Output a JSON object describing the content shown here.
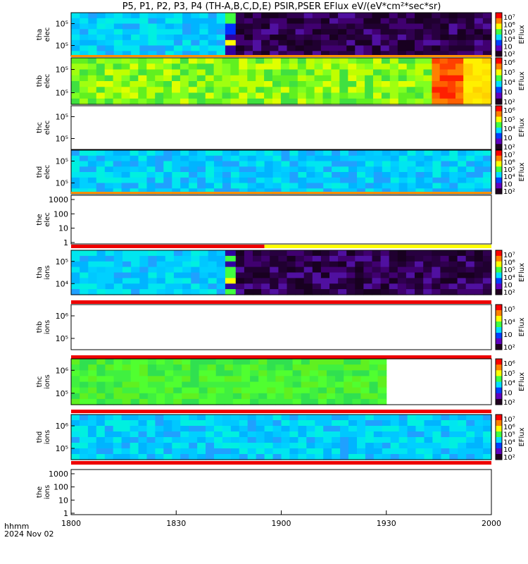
{
  "chart_data": {
    "type": "heatmap",
    "title": "P5, P1, P2, P3, P4 (TH-A,B,C,D,E) PSIR,PSER EFlux eV/(eV*cm²*sec*sr)",
    "x_ticks": [
      "1800",
      "1830",
      "1900",
      "1930",
      "2000"
    ],
    "time_label": "hhmm",
    "date_label": "2024 Nov 02",
    "colorbar_label": "EFlux",
    "panels": [
      {
        "name": "tha elec",
        "ylabel": [
          "tha",
          "elec"
        ],
        "yticks": [
          "10⁵",
          "10⁵"
        ],
        "coverage_end": 1.0,
        "strip": "orange",
        "colorbar": {
          "ticks": [
            "10⁷",
            "10⁶",
            "10⁵",
            "10⁴",
            "10⁳",
            "10²"
          ]
        },
        "segments": [
          {
            "from": "1800",
            "to": "1844",
            "state": "blue-cyan"
          },
          {
            "from": "1844",
            "to": "1847",
            "state": "transition"
          },
          {
            "from": "1847",
            "to": "2000",
            "state": "dark-purple"
          }
        ]
      },
      {
        "name": "thb elec",
        "ylabel": [
          "thb",
          "elec"
        ],
        "yticks": [
          "10⁵",
          "10⁵"
        ],
        "coverage_end": 1.0,
        "strip": "none",
        "colorbar": {
          "ticks": [
            "10⁶",
            "10⁵",
            "10⁴",
            "10⁳",
            "10²"
          ]
        },
        "segments": [
          {
            "from": "1800",
            "to": "1943",
            "state": "green-yellow"
          },
          {
            "from": "1943",
            "to": "1952",
            "state": "orange-red"
          },
          {
            "from": "1952",
            "to": "2000",
            "state": "yellow"
          }
        ]
      },
      {
        "name": "thc elec",
        "ylabel": [
          "thc",
          "elec"
        ],
        "yticks": [
          "10⁵",
          "10⁵"
        ],
        "coverage_end": 0.0,
        "strip": "none",
        "colorbar": {
          "ticks": [
            "10⁶",
            "10⁵",
            "10⁴",
            "10⁳",
            "10²"
          ]
        },
        "segments": []
      },
      {
        "name": "thd elec",
        "ylabel": [
          "thd",
          "elec"
        ],
        "yticks": [
          "10⁵",
          "10⁵"
        ],
        "coverage_end": 1.0,
        "strip": "orange",
        "colorbar": {
          "ticks": [
            "10⁷",
            "10⁶",
            "10⁵",
            "10⁴",
            "10⁳",
            "10²"
          ]
        },
        "segments": [
          {
            "from": "1800",
            "to": "2000",
            "state": "blue-cyan"
          }
        ]
      },
      {
        "name": "the elec",
        "ylabel": [
          "the",
          "elec"
        ],
        "yticks": [
          "1000",
          "100",
          "10",
          "1"
        ],
        "coverage_end": 0.0,
        "strip": "red-yellow",
        "colorbar": null,
        "segments": []
      },
      {
        "name": "tha ions",
        "ylabel": [
          "tha",
          "ions"
        ],
        "yticks": [
          "10⁵",
          "10⁴"
        ],
        "coverage_end": 1.0,
        "strip": "red",
        "colorbar": {
          "ticks": [
            "10⁷",
            "10⁶",
            "10⁵",
            "10⁴",
            "10⁳",
            "10²"
          ]
        },
        "segments": [
          {
            "from": "1800",
            "to": "1844",
            "state": "blue-cyan"
          },
          {
            "from": "1844",
            "to": "1847",
            "state": "transition"
          },
          {
            "from": "1847",
            "to": "2000",
            "state": "dark-purple"
          }
        ]
      },
      {
        "name": "thb ions",
        "ylabel": [
          "thb",
          "ions"
        ],
        "yticks": [
          "10⁶",
          "10⁵"
        ],
        "coverage_end": 0.0,
        "strip": "red",
        "colorbar": {
          "ticks": [
            "10⁵",
            "10⁴",
            "10⁳",
            "10²"
          ]
        },
        "segments": []
      },
      {
        "name": "thc ions",
        "ylabel": [
          "thc",
          "ions"
        ],
        "yticks": [
          "10⁶",
          "10⁵"
        ],
        "coverage_end": 0.75,
        "strip": "red",
        "colorbar": {
          "ticks": [
            "10⁶",
            "10⁵",
            "10⁴",
            "10⁳",
            "10²"
          ]
        },
        "segments": [
          {
            "from": "1800",
            "to": "1930",
            "state": "green"
          }
        ]
      },
      {
        "name": "thd ions",
        "ylabel": [
          "thd",
          "ions"
        ],
        "yticks": [
          "10⁶",
          "10⁵"
        ],
        "coverage_end": 1.0,
        "strip": "red",
        "colorbar": {
          "ticks": [
            "10⁷",
            "10⁶",
            "10⁵",
            "10⁴",
            "10⁳",
            "10²"
          ]
        },
        "segments": [
          {
            "from": "1800",
            "to": "2000",
            "state": "blue-cyan"
          }
        ]
      },
      {
        "name": "the ions",
        "ylabel": [
          "the",
          "ions"
        ],
        "yticks": [
          "1000",
          "100",
          "10",
          "1"
        ],
        "coverage_end": 0.0,
        "strip": "none",
        "colorbar": null,
        "segments": []
      }
    ]
  }
}
